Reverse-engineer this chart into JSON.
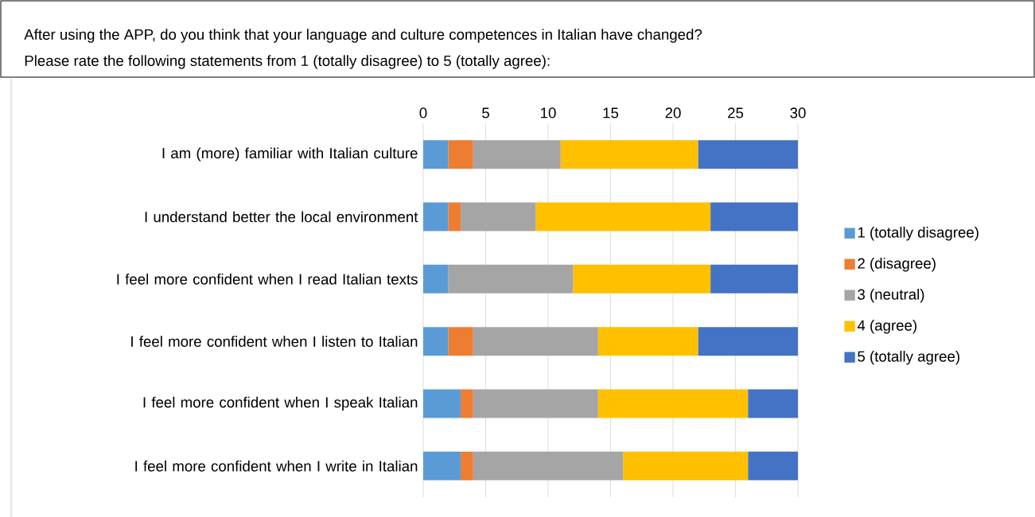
{
  "chart_data": {
    "type": "bar",
    "orientation": "horizontal",
    "stacked": true,
    "title": "After using the APP, do you think that your language and culture competences in Italian have changed?",
    "subtitle": "Please rate the following statements from 1 (totally disagree) to 5 (totally agree):",
    "categories": [
      "I am (more) familiar with Italian culture",
      "I understand better the local environment",
      "I feel more confident when I read Italian texts",
      "I feel more confident when I listen to Italian",
      "I feel more confident when I speak Italian",
      "I feel more confident when I write in Italian"
    ],
    "series": [
      {
        "name": "1 (totally disagree)",
        "color": "#5b9bd5",
        "values": [
          2,
          2,
          2,
          2,
          3,
          3
        ]
      },
      {
        "name": "2 (disagree)",
        "color": "#ed7d31",
        "values": [
          2,
          1,
          0,
          2,
          1,
          1
        ]
      },
      {
        "name": "3 (neutral)",
        "color": "#a5a5a5",
        "values": [
          7,
          6,
          10,
          10,
          10,
          12
        ]
      },
      {
        "name": "4 (agree)",
        "color": "#ffc000",
        "values": [
          11,
          14,
          11,
          8,
          12,
          10
        ]
      },
      {
        "name": "5 (totally agree)",
        "color": "#4472c4",
        "values": [
          8,
          7,
          7,
          8,
          4,
          4
        ]
      }
    ],
    "xlim": [
      0,
      30
    ],
    "xticks": [
      0,
      5,
      10,
      15,
      20,
      25,
      30
    ],
    "grid": "x",
    "legend": "right"
  }
}
